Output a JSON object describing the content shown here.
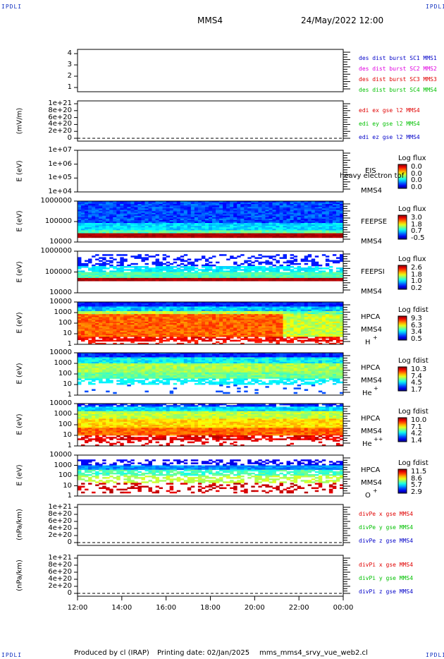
{
  "corners": {
    "tl": "IPDLI",
    "tr": "IPDLI",
    "bl": "IPDLI",
    "br": "IPDLI"
  },
  "header": {
    "spacecraft": "MMS4",
    "date": "24/May/2022 12:00"
  },
  "footer": {
    "produced": "Produced by cl (IRAP)",
    "printing": "Printing date: 02/Jan/2025",
    "script": "mms_mms4_srvy_vue_web2.cl"
  },
  "chart_data": [
    {
      "type": "line",
      "panel": 1,
      "yticks": [
        "4",
        "3",
        "2",
        "1"
      ],
      "legend": [
        {
          "label": "des dist burst SC1 MMS1",
          "color": "#0000c8"
        },
        {
          "label": "des dist burst SC2 MMS2",
          "color": "#e000e0"
        },
        {
          "label": "des dist burst SC3 MMS3",
          "color": "#e00000"
        },
        {
          "label": "des dist burst SC4 MMS4",
          "color": "#00c000"
        }
      ]
    },
    {
      "type": "line",
      "panel": 2,
      "ylabel": "(mV/m)",
      "yticks": [
        "1e+21",
        "8e+20",
        "6e+20",
        "4e+20",
        "2e+20",
        "0"
      ],
      "zero_line": true,
      "legend": [
        {
          "label": "edi ex gse l2 MMS4",
          "color": "#e00000"
        },
        {
          "label": "edi ey gse l2 MMS4",
          "color": "#00c000"
        },
        {
          "label": "edi ez gse l2 MMS4",
          "color": "#0000c8"
        }
      ]
    },
    {
      "type": "heatmap",
      "panel": 3,
      "ylabel": "E (eV)",
      "yticks": [
        "1e+07",
        "1e+06",
        "1e+05",
        "1e+04"
      ],
      "instrument": "EIS",
      "sc": "MMS4",
      "overlay": "heavy electron tof",
      "colorbar": {
        "title": "Log flux",
        "values": [
          "0.0",
          "0.0",
          "0.0",
          "0.0"
        ]
      },
      "empty": true
    },
    {
      "type": "heatmap",
      "panel": 4,
      "ylabel": "E (eV)",
      "yticks": [
        "1000000",
        "100000",
        "10000"
      ],
      "instrument": "FEEPSE",
      "sc": "MMS4",
      "colorbar": {
        "title": "Log flux",
        "values": [
          "3.0",
          "1.8",
          "0.7",
          "-0.5"
        ]
      }
    },
    {
      "type": "heatmap",
      "panel": 5,
      "ylabel": "E (eV)",
      "yticks": [
        "1000000",
        "100000",
        "10000"
      ],
      "instrument": "FEEPSI",
      "sc": "MMS4",
      "colorbar": {
        "title": "Log flux",
        "values": [
          "2.6",
          "1.8",
          "1.0",
          "0.2"
        ]
      }
    },
    {
      "type": "heatmap",
      "panel": 6,
      "ylabel": "E (eV)",
      "yticks": [
        "10000",
        "1000",
        "100",
        "10",
        "1"
      ],
      "instrument": "HPCA",
      "sc": "MMS4",
      "species": "H",
      "charge": "+",
      "colorbar": {
        "title": "Log fdist",
        "values": [
          "9.3",
          "6.3",
          "3.4",
          "0.5"
        ]
      }
    },
    {
      "type": "heatmap",
      "panel": 7,
      "ylabel": "E (eV)",
      "yticks": [
        "10000",
        "1000",
        "100",
        "10",
        "1"
      ],
      "instrument": "HPCA",
      "sc": "MMS4",
      "species": "He",
      "charge": "+",
      "colorbar": {
        "title": "Log fdist",
        "values": [
          "10.3",
          "7.4",
          "4.5",
          "1.7"
        ]
      }
    },
    {
      "type": "heatmap",
      "panel": 8,
      "ylabel": "E (eV)",
      "yticks": [
        "10000",
        "1000",
        "100",
        "10",
        "1"
      ],
      "instrument": "HPCA",
      "sc": "MMS4",
      "species": "He",
      "charge": "++",
      "colorbar": {
        "title": "Log fdist",
        "values": [
          "10.0",
          "7.1",
          "4.2",
          "1.4"
        ]
      }
    },
    {
      "type": "heatmap",
      "panel": 9,
      "ylabel": "E (eV)",
      "yticks": [
        "10000",
        "1000",
        "100",
        "10",
        "1"
      ],
      "instrument": "HPCA",
      "sc": "MMS4",
      "species": "O",
      "charge": "+",
      "colorbar": {
        "title": "Log fdist",
        "values": [
          "11.5",
          "8.6",
          "5.7",
          "2.9"
        ]
      }
    },
    {
      "type": "line",
      "panel": 10,
      "ylabel": "(nPa/km)",
      "yticks": [
        "1e+21",
        "8e+20",
        "6e+20",
        "4e+20",
        "2e+20",
        "0"
      ],
      "zero_line": true,
      "legend": [
        {
          "label": "divPe x gse MMS4",
          "color": "#e00000"
        },
        {
          "label": "divPe y gse MMS4",
          "color": "#00c000"
        },
        {
          "label": "divPe z gse MMS4",
          "color": "#0000c8"
        }
      ]
    },
    {
      "type": "line",
      "panel": 11,
      "ylabel": "(nPa/km)",
      "yticks": [
        "1e+21",
        "8e+20",
        "6e+20",
        "4e+20",
        "2e+20",
        "0"
      ],
      "zero_line": true,
      "legend": [
        {
          "label": "divPi x gse MMS4",
          "color": "#e00000"
        },
        {
          "label": "divPi y gse MMS4",
          "color": "#00c000"
        },
        {
          "label": "divPi z gse MMS4",
          "color": "#0000c8"
        }
      ]
    }
  ],
  "xaxis": {
    "ticks": [
      "12:00",
      "14:00",
      "16:00",
      "18:00",
      "20:00",
      "22:00",
      "00:00"
    ]
  }
}
